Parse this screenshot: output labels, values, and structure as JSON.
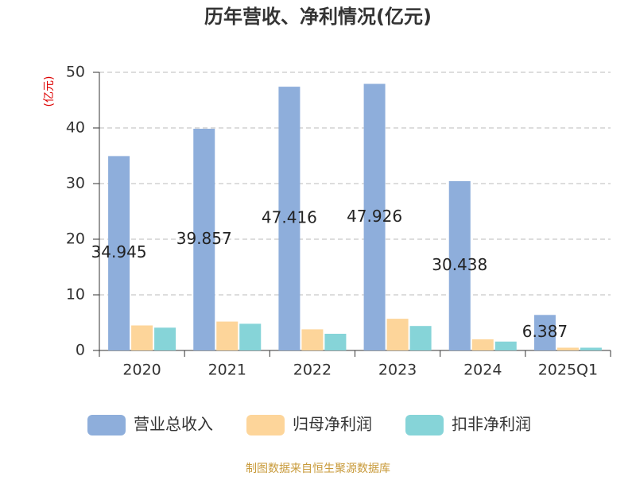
{
  "chart_data": {
    "type": "bar",
    "title": "历年营收、净利情况(亿元)",
    "y_label": "(亿元)",
    "categories": [
      "2020",
      "2021",
      "2022",
      "2023",
      "2024",
      "2025Q1"
    ],
    "series": [
      {
        "name": "营业总收入",
        "color": "#8eaedb",
        "values": [
          34.945,
          39.857,
          47.416,
          47.926,
          30.438,
          6.387
        ],
        "show_labels": true
      },
      {
        "name": "归母净利润",
        "color": "#fdd59a",
        "values": [
          4.5,
          5.2,
          3.8,
          5.7,
          2.0,
          0.5
        ]
      },
      {
        "name": "扣非净利润",
        "color": "#86d4d8",
        "values": [
          4.1,
          4.8,
          3.0,
          4.4,
          1.6,
          0.5
        ]
      }
    ],
    "ylim": [
      0,
      50
    ],
    "yticks": [
      0,
      10,
      20,
      30,
      40,
      50
    ],
    "grid": true,
    "source": "制图数据来自恒生聚源数据库"
  }
}
